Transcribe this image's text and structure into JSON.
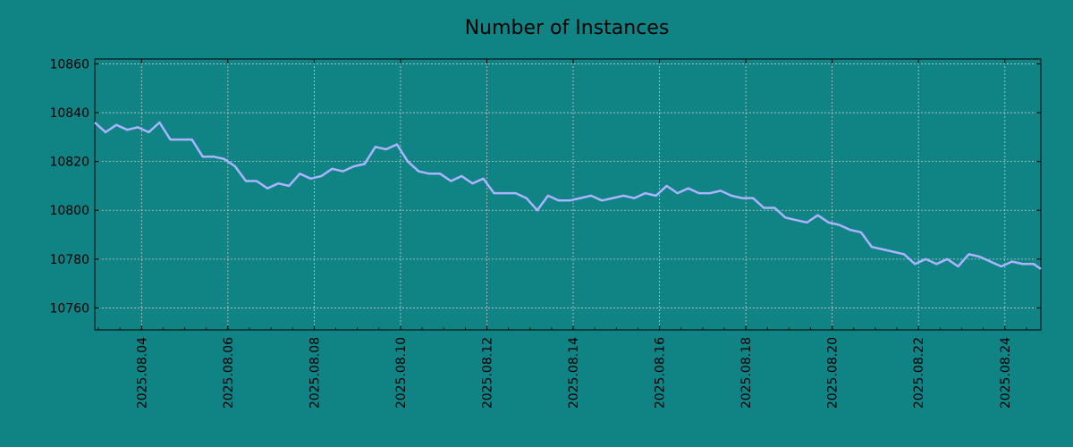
{
  "chart_data": {
    "type": "line",
    "title": "Number of Instances",
    "xlabel": "",
    "ylabel": "",
    "grid": true,
    "legend": "none",
    "colors": {
      "background": "#108385",
      "line": "#aab4ff",
      "grid": "#c8c8c8",
      "axis": "#000000"
    },
    "xlim": [
      "2025-08-02 22:00",
      "2025-08-24 20:00"
    ],
    "ylim": [
      10751,
      10862
    ],
    "yticks": [
      10760,
      10780,
      10800,
      10820,
      10840,
      10860
    ],
    "xticks": [
      "2025.08.04",
      "2025.08.06",
      "2025.08.08",
      "2025.08.10",
      "2025.08.12",
      "2025.08.14",
      "2025.08.16",
      "2025.08.18",
      "2025.08.20",
      "2025.08.22",
      "2025.08.24"
    ],
    "series": [
      {
        "x": [
          "2025-08-02 22:00",
          "2025-08-03 04:00",
          "2025-08-03 10:00",
          "2025-08-03 16:00",
          "2025-08-03 22:00",
          "2025-08-04 04:00",
          "2025-08-04 10:00",
          "2025-08-04 16:00",
          "2025-08-04 22:00",
          "2025-08-05 04:00",
          "2025-08-05 10:00",
          "2025-08-05 16:00",
          "2025-08-05 22:00",
          "2025-08-06 04:00",
          "2025-08-06 10:00",
          "2025-08-06 16:00",
          "2025-08-06 22:00",
          "2025-08-07 04:00",
          "2025-08-07 10:00",
          "2025-08-07 16:00",
          "2025-08-07 22:00",
          "2025-08-08 04:00",
          "2025-08-08 10:00",
          "2025-08-08 16:00",
          "2025-08-08 22:00",
          "2025-08-09 04:00",
          "2025-08-09 10:00",
          "2025-08-09 16:00",
          "2025-08-09 22:00",
          "2025-08-10 04:00",
          "2025-08-10 10:00",
          "2025-08-10 16:00",
          "2025-08-10 22:00",
          "2025-08-11 04:00",
          "2025-08-11 10:00",
          "2025-08-11 16:00",
          "2025-08-11 22:00",
          "2025-08-12 04:00",
          "2025-08-12 10:00",
          "2025-08-12 16:00",
          "2025-08-12 22:00",
          "2025-08-13 04:00",
          "2025-08-13 10:00",
          "2025-08-13 16:00",
          "2025-08-13 22:00",
          "2025-08-14 04:00",
          "2025-08-14 10:00",
          "2025-08-14 16:00",
          "2025-08-14 22:00",
          "2025-08-15 04:00",
          "2025-08-15 10:00",
          "2025-08-15 16:00",
          "2025-08-15 22:00",
          "2025-08-16 04:00",
          "2025-08-16 10:00",
          "2025-08-16 16:00",
          "2025-08-16 22:00",
          "2025-08-17 04:00",
          "2025-08-17 10:00",
          "2025-08-17 16:00",
          "2025-08-17 22:00",
          "2025-08-18 04:00",
          "2025-08-18 10:00",
          "2025-08-18 16:00",
          "2025-08-18 22:00",
          "2025-08-19 04:00",
          "2025-08-19 10:00",
          "2025-08-19 16:00",
          "2025-08-19 22:00",
          "2025-08-20 04:00",
          "2025-08-20 10:00",
          "2025-08-20 16:00",
          "2025-08-20 22:00",
          "2025-08-21 04:00",
          "2025-08-21 10:00",
          "2025-08-21 16:00",
          "2025-08-21 22:00",
          "2025-08-22 04:00",
          "2025-08-22 10:00",
          "2025-08-22 16:00",
          "2025-08-22 22:00",
          "2025-08-23 04:00",
          "2025-08-23 10:00",
          "2025-08-23 16:00",
          "2025-08-23 22:00",
          "2025-08-24 04:00",
          "2025-08-24 10:00",
          "2025-08-24 16:00",
          "2025-08-24 20:00"
        ],
        "values": [
          10836,
          10832,
          10835,
          10833,
          10834,
          10832,
          10836,
          10829,
          10829,
          10829,
          10822,
          10822,
          10821,
          10818,
          10812,
          10812,
          10809,
          10811,
          10810,
          10815,
          10813,
          10814,
          10817,
          10816,
          10818,
          10819,
          10826,
          10825,
          10827,
          10820,
          10816,
          10815,
          10815,
          10812,
          10814,
          10811,
          10813,
          10807,
          10807,
          10807,
          10805,
          10800,
          10806,
          10804,
          10804,
          10805,
          10806,
          10804,
          10805,
          10806,
          10805,
          10807,
          10806,
          10810,
          10807,
          10809,
          10807,
          10807,
          10808,
          10806,
          10805,
          10805,
          10801,
          10801,
          10797,
          10796,
          10795,
          10798,
          10795,
          10794,
          10792,
          10791,
          10785,
          10784,
          10783,
          10782,
          10778,
          10780,
          10778,
          10780,
          10777,
          10782,
          10781,
          10779,
          10777,
          10779,
          10778,
          10778,
          10776
        ]
      }
    ]
  }
}
